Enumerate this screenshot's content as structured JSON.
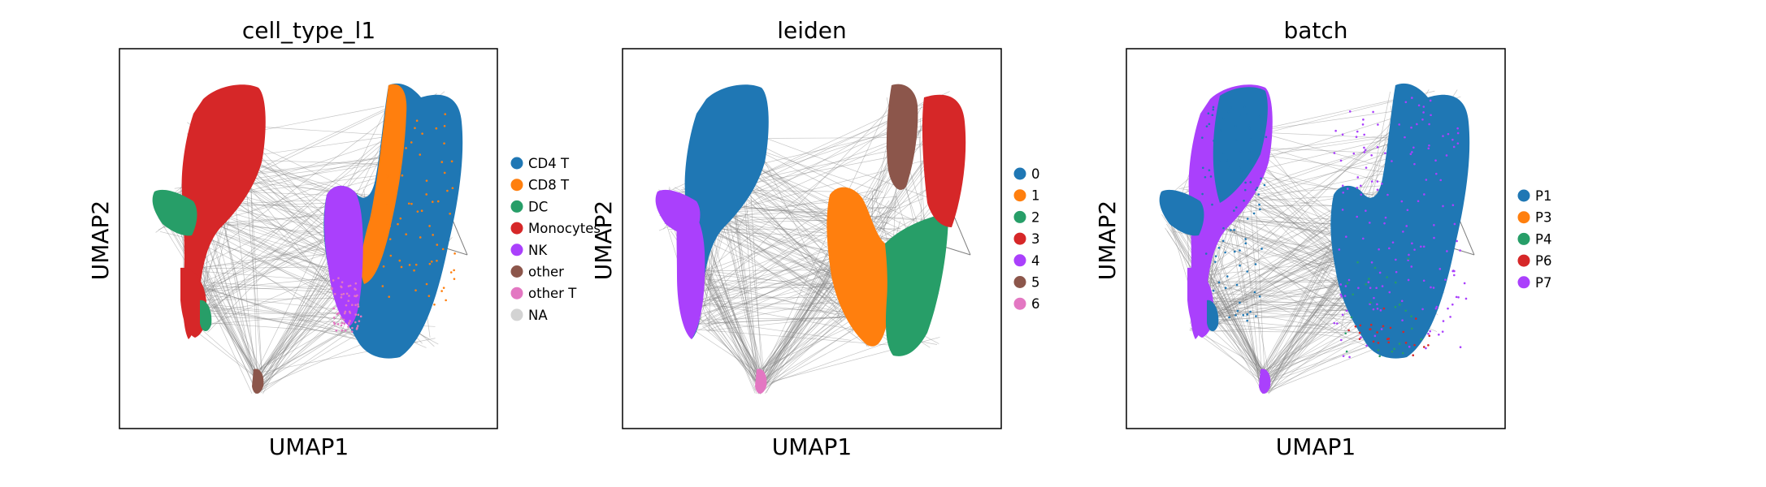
{
  "chart_data": [
    {
      "type": "scatter",
      "title": "cell_type_l1",
      "xlabel": "UMAP1",
      "ylabel": "UMAP2",
      "ticks": "none",
      "grid": false,
      "legend": {
        "placement": "right",
        "entries": [
          {
            "label": "CD4 T",
            "color": "#1f77b4"
          },
          {
            "label": "CD8 T",
            "color": "#ff7f0e"
          },
          {
            "label": "DC",
            "color": "#279e68"
          },
          {
            "label": "Monocytes",
            "color": "#d62728"
          },
          {
            "label": "NK",
            "color": "#aa40fc"
          },
          {
            "label": "other",
            "color": "#8c564b"
          },
          {
            "label": "other T",
            "color": "#e377c2"
          },
          {
            "label": "NA",
            "color": "#d3d3d3"
          }
        ]
      },
      "edge_color": "#808080"
    },
    {
      "type": "scatter",
      "title": "leiden",
      "xlabel": "UMAP1",
      "ylabel": "UMAP2",
      "ticks": "none",
      "grid": false,
      "legend": {
        "placement": "right",
        "entries": [
          {
            "label": "0",
            "color": "#1f77b4"
          },
          {
            "label": "1",
            "color": "#ff7f0e"
          },
          {
            "label": "2",
            "color": "#279e68"
          },
          {
            "label": "3",
            "color": "#d62728"
          },
          {
            "label": "4",
            "color": "#aa40fc"
          },
          {
            "label": "5",
            "color": "#8c564b"
          },
          {
            "label": "6",
            "color": "#e377c2"
          }
        ]
      },
      "edge_color": "#808080"
    },
    {
      "type": "scatter",
      "title": "batch",
      "xlabel": "UMAP1",
      "ylabel": "UMAP2",
      "ticks": "none",
      "grid": false,
      "legend": {
        "placement": "right",
        "entries": [
          {
            "label": "P1",
            "color": "#1f77b4"
          },
          {
            "label": "P3",
            "color": "#ff7f0e"
          },
          {
            "label": "P4",
            "color": "#279e68"
          },
          {
            "label": "P6",
            "color": "#d62728"
          },
          {
            "label": "P7",
            "color": "#aa40fc"
          }
        ]
      },
      "edge_color": "#808080"
    }
  ]
}
